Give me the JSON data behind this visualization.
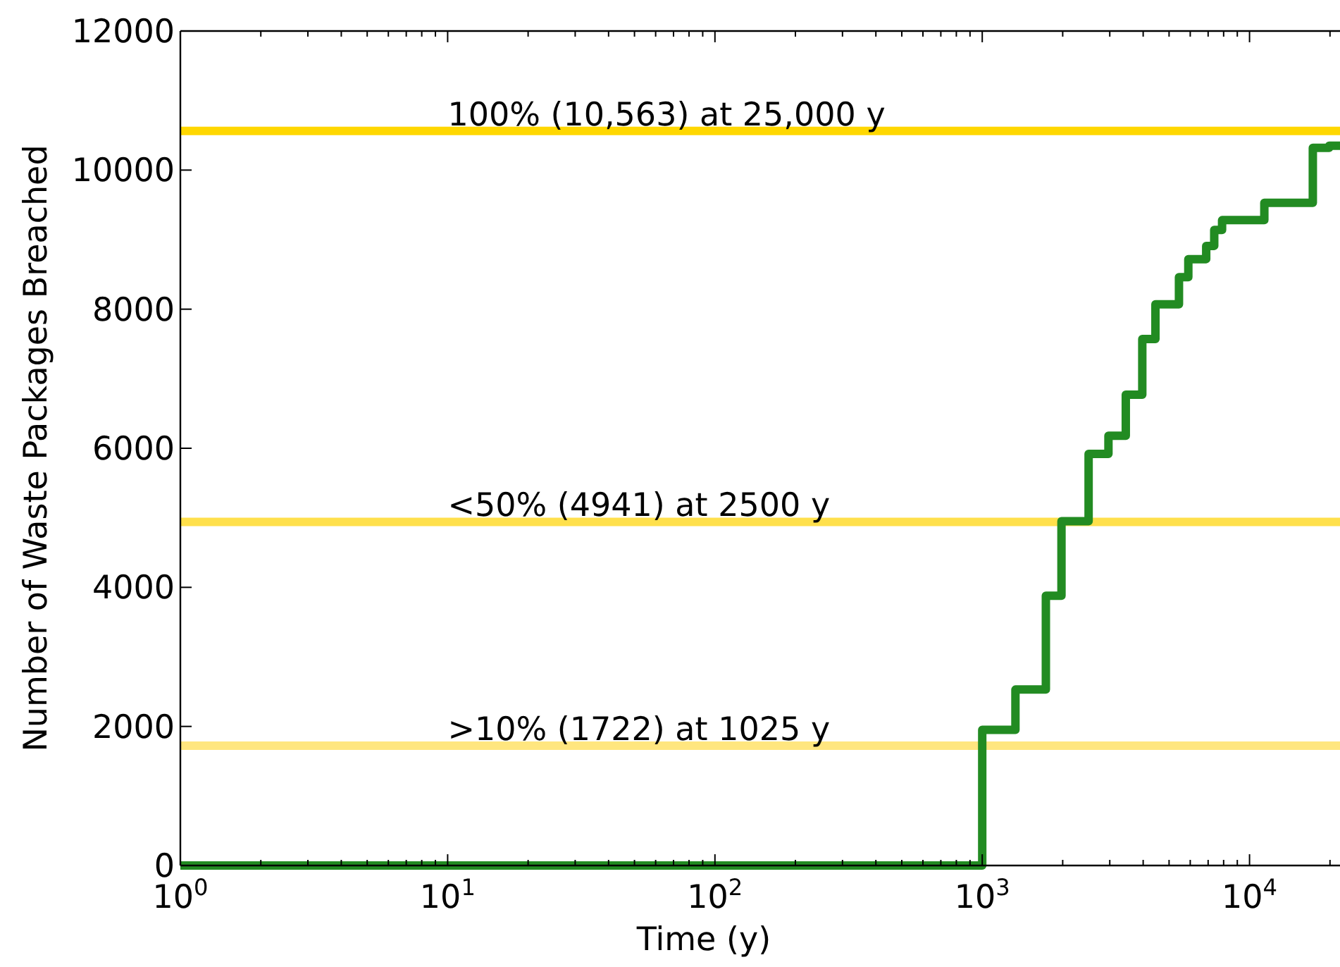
{
  "chart_data": {
    "type": "step",
    "xlabel": "Time (y)",
    "ylabel": "Number of Waste Packages Breached",
    "log": "x",
    "grid": false,
    "marker": "none",
    "line_style": "solid",
    "xlim": [
      1,
      21800
    ],
    "ylim": [
      0,
      12000
    ],
    "xticks": [
      {
        "value": 1,
        "label": "10$^{0}$"
      },
      {
        "value": 2,
        "label": null
      },
      {
        "value": 3,
        "label": null
      },
      {
        "value": 4,
        "label": null
      },
      {
        "value": 5,
        "label": null
      },
      {
        "value": 6,
        "label": null
      },
      {
        "value": 7,
        "label": null
      },
      {
        "value": 8,
        "label": null
      },
      {
        "value": 9,
        "label": null
      },
      {
        "value": 10,
        "label": "10$^{1}$"
      },
      {
        "value": 20,
        "label": null
      },
      {
        "value": 30,
        "label": null
      },
      {
        "value": 40,
        "label": null
      },
      {
        "value": 50,
        "label": null
      },
      {
        "value": 60,
        "label": null
      },
      {
        "value": 70,
        "label": null
      },
      {
        "value": 80,
        "label": null
      },
      {
        "value": 90,
        "label": null
      },
      {
        "value": 100,
        "label": "10$^{2}$"
      },
      {
        "value": 200,
        "label": null
      },
      {
        "value": 300,
        "label": null
      },
      {
        "value": 400,
        "label": null
      },
      {
        "value": 500,
        "label": null
      },
      {
        "value": 600,
        "label": null
      },
      {
        "value": 700,
        "label": null
      },
      {
        "value": 800,
        "label": null
      },
      {
        "value": 900,
        "label": null
      },
      {
        "value": 1000,
        "label": "10$^{3}$"
      },
      {
        "value": 2000,
        "label": null
      },
      {
        "value": 3000,
        "label": null
      },
      {
        "value": 4000,
        "label": null
      },
      {
        "value": 5000,
        "label": null
      },
      {
        "value": 6000,
        "label": null
      },
      {
        "value": 7000,
        "label": null
      },
      {
        "value": 8000,
        "label": null
      },
      {
        "value": 9000,
        "label": null
      },
      {
        "value": 10000,
        "label": "10$^{4}$"
      },
      {
        "value": 20000,
        "label": null
      }
    ],
    "yticks": [
      0,
      2000,
      4000,
      6000,
      8000,
      10000,
      12000
    ],
    "series": [
      {
        "color": "#228b22",
        "x": [
          1,
          1000,
          1331,
          1730,
          1979,
          2500,
          2966,
          3444,
          3970,
          4446,
          5445,
          5902,
          6885,
          7378,
          7894,
          11360,
          17250,
          19860,
          21800
        ],
        "values": [
          0,
          1950,
          2530,
          3880,
          4950,
          5920,
          6180,
          6770,
          7570,
          8070,
          8460,
          8720,
          8910,
          9140,
          9280,
          9530,
          10320,
          10350,
          10350
        ]
      }
    ],
    "ref_lines": [
      {
        "axis": "y",
        "value": 10563,
        "label": "100% (10,563) at 25,000 y",
        "color": "#ffd700"
      },
      {
        "axis": "y",
        "value": 4941,
        "label": "<50% (4941) at 2500 y",
        "color": "#ffe04c"
      },
      {
        "axis": "y",
        "value": 1722,
        "label": ">10% (1722) at 1025 y",
        "color": "#ffe67f"
      }
    ]
  }
}
